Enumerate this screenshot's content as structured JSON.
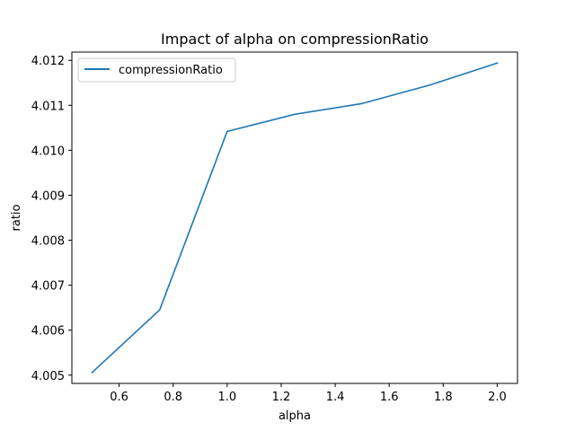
{
  "chart_data": {
    "type": "line",
    "title": "Impact of alpha on compressionRatio",
    "xlabel": "alpha",
    "ylabel": "ratio",
    "x": [
      0.5,
      0.75,
      1.0,
      1.25,
      1.5,
      1.75,
      2.0
    ],
    "series": [
      {
        "name": "compressionRatio",
        "color": "#1f77b4",
        "values": [
          4.00506,
          4.00645,
          4.01042,
          4.0108,
          4.01104,
          4.01145,
          4.01194
        ]
      }
    ],
    "xlim": [
      0.425,
      2.075
    ],
    "ylim": [
      4.004816,
      4.012184
    ],
    "xticks": [
      0.6,
      0.8,
      1.0,
      1.2,
      1.4,
      1.6,
      1.8,
      2.0
    ],
    "xtick_labels": [
      "0.6",
      "0.8",
      "1.0",
      "1.2",
      "1.4",
      "1.6",
      "1.8",
      "2.0"
    ],
    "yticks": [
      4.005,
      4.006,
      4.007,
      4.008,
      4.009,
      4.01,
      4.011,
      4.012
    ],
    "ytick_labels": [
      "4.005",
      "4.006",
      "4.007",
      "4.008",
      "4.009",
      "4.010",
      "4.011",
      "4.012"
    ],
    "grid": false,
    "legend_position": "top-left"
  }
}
